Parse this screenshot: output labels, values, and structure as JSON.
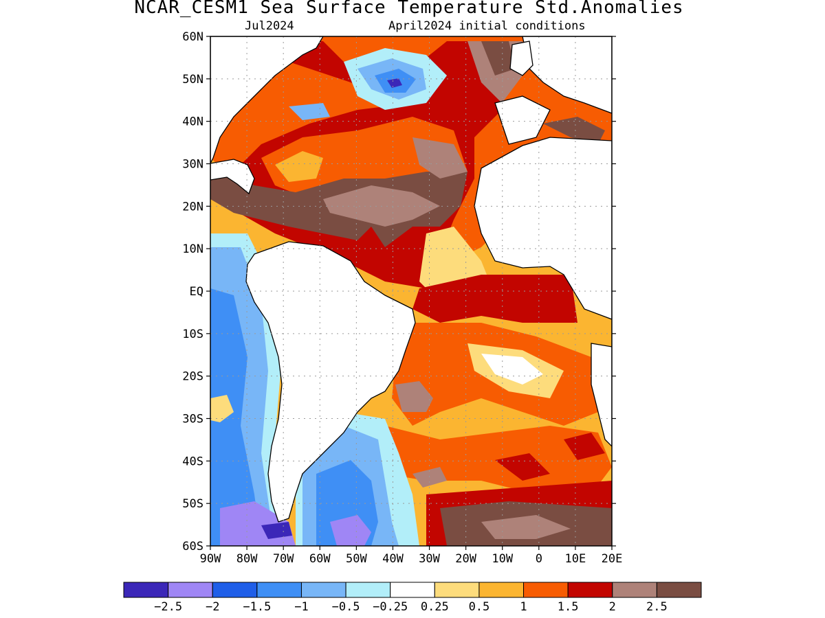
{
  "title": "NCAR_CESM1 Sea Surface Temperature Std.Anomalies",
  "subtitle_left": "Jul2024",
  "subtitle_right": "April2024 initial conditions",
  "map": {
    "lon_ticks": [
      "90W",
      "80W",
      "70W",
      "60W",
      "50W",
      "40W",
      "30W",
      "20W",
      "10W",
      "0",
      "10E",
      "20E"
    ],
    "lat_ticks": [
      "60N",
      "50N",
      "40N",
      "30N",
      "20N",
      "10N",
      "EQ",
      "10S",
      "20S",
      "30S",
      "40S",
      "50S",
      "60S"
    ],
    "lon_range": [
      -90,
      20
    ],
    "lat_range": [
      -60,
      60
    ],
    "grid": "dotted"
  },
  "colorbar": {
    "colors": [
      "#3b27b8",
      "#9f86f5",
      "#1f5ee8",
      "#3f8ff5",
      "#78b6f7",
      "#b2eef9",
      "#ffffff",
      "#fddc7c",
      "#fbb531",
      "#f75c02",
      "#c20500",
      "#ae8279",
      "#7a4d42"
    ],
    "labels": [
      "-2.5",
      "-2",
      "-1.5",
      "-1",
      "-0.5",
      "-0.25",
      "0.25",
      "0.5",
      "1",
      "1.5",
      "2",
      "2.5"
    ]
  },
  "colors": {
    "land": "#ffffff",
    "coast": "#000000"
  }
}
